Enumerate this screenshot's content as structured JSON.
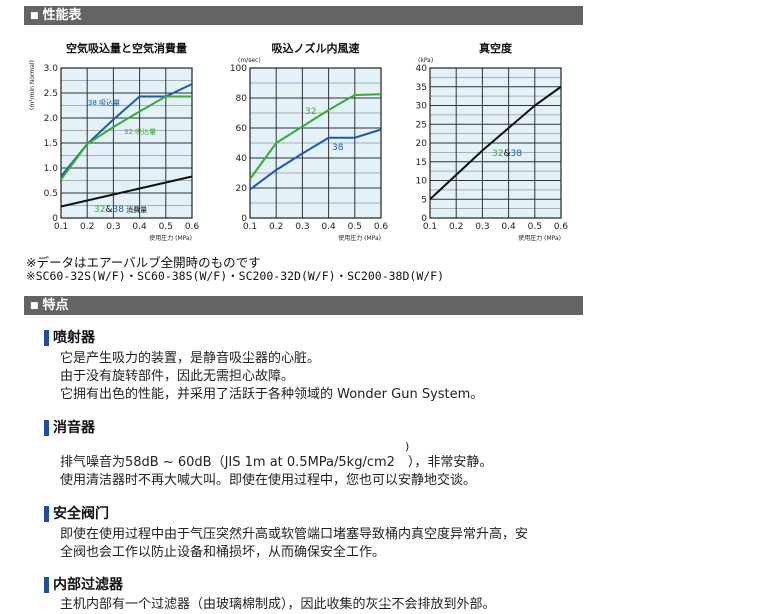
{
  "sections": {
    "performance": "性能表",
    "features": "特点"
  },
  "colors": {
    "blue": "#1d5aa8",
    "green": "#3aa935",
    "plot_bg": "#e3f2f8",
    "header_bg": "#646464"
  },
  "notes": [
    "※データはエアーバルブ全開時のものです",
    "※SC60-32S(W/F)・SC60-38S(W/F)・SC200-32D(W/F)・SC200-38D(W/F)"
  ],
  "features": [
    {
      "title": "喷射器",
      "lines": [
        "它是产生吸力的装置，是静音吸尘器的心脏。",
        "由于没有旋转部件，因此无需担心故障。",
        "它拥有出色的性能，并采用了活跃于各种领域的 Wonder Gun System。"
      ]
    },
    {
      "title": "消音器",
      "lines": [
        "排气噪音为58dB ~ 60dB（JIS 1m at 0.5MPa/5kg/cm2　），非常安静。",
        "使用清洁器时不再大喊大叫。即使在使用过程中，您也可以安静地交谈。"
      ],
      "superscript": ")"
    },
    {
      "title": "安全阀门",
      "lines": [
        "即使在使用过程中由于气压突然升高或软管端口堵塞导致桶内真空度异常升高，安",
        "全阀也会工作以防止设备和桶损坏，从而确保安全工作。"
      ]
    },
    {
      "title": "内部过滤器",
      "lines": [
        "主机内部有一个过滤器（由玻璃棉制成），因此收集的灰尘不会排放到外部。"
      ]
    }
  ],
  "chart_data": [
    {
      "type": "line",
      "title": "空気吸込量と空気消費量",
      "ylabel": "(m³/min Normal)",
      "xlabel": "使用圧力 (MPa)",
      "xlim": [
        0.1,
        0.6
      ],
      "ylim": [
        0,
        3.0
      ],
      "x": [
        0.1,
        0.2,
        0.3,
        0.4,
        0.5,
        0.6
      ],
      "xticks": [
        "0.1",
        "0.2",
        "0.3",
        "0.4",
        "0.5",
        "0.6"
      ],
      "yticks": [
        "0",
        "0.5",
        "1.0",
        "1.5",
        "2.0",
        "2.5",
        "3.0"
      ],
      "ytick_values": [
        0,
        0.5,
        1,
        1.5,
        2,
        2.5,
        3
      ],
      "grid": true,
      "series": [
        {
          "name": "38 吸込量",
          "color": "#1d5aa8",
          "values": [
            0.83,
            1.48,
            1.97,
            2.43,
            2.43,
            2.68
          ]
        },
        {
          "name": "32 吸込量",
          "color": "#3aa935",
          "values": [
            0.77,
            1.48,
            1.82,
            2.13,
            2.43,
            2.43
          ]
        },
        {
          "name": "32&38 消費量",
          "color": "#111111",
          "values": [
            0.23,
            0.35,
            0.47,
            0.59,
            0.71,
            0.83
          ]
        }
      ],
      "labels": [
        {
          "parts": [
            [
              "38 吸込量",
              "#1d5aa8"
            ]
          ]
        },
        {
          "parts": [
            [
              "32 吸込量",
              "#3aa935"
            ]
          ]
        },
        {
          "parts": [
            [
              "32",
              "#3aa935"
            ],
            [
              "&",
              "#111"
            ],
            [
              "38",
              "#1d5aa8"
            ],
            [
              " 消費量",
              "#111"
            ]
          ]
        }
      ]
    },
    {
      "type": "line",
      "title": "吸込ノズル内風速",
      "ylabel": "(m/sec)",
      "xlabel": "使用圧力 (MPa)",
      "xlim": [
        0.1,
        0.6
      ],
      "ylim": [
        0,
        100
      ],
      "x": [
        0.1,
        0.2,
        0.3,
        0.4,
        0.5,
        0.6
      ],
      "xticks": [
        "0.1",
        "0.2",
        "0.3",
        "0.4",
        "0.5",
        "0.6"
      ],
      "yticks": [
        "0",
        "20",
        "40",
        "60",
        "80",
        "100"
      ],
      "ytick_values": [
        0,
        20,
        40,
        60,
        80,
        100
      ],
      "grid": true,
      "series": [
        {
          "name": "32",
          "color": "#3aa935",
          "values": [
            26,
            50,
            61,
            72,
            82,
            82.5
          ]
        },
        {
          "name": "38",
          "color": "#1d5aa8",
          "values": [
            19,
            32,
            43,
            53.5,
            53.5,
            59
          ]
        }
      ],
      "labels": [
        {
          "parts": [
            [
              "32",
              "#3aa935"
            ]
          ]
        },
        {
          "parts": [
            [
              "38",
              "#1d5aa8"
            ]
          ]
        }
      ]
    },
    {
      "type": "line",
      "title": "真空度",
      "ylabel": "(kPa)",
      "xlabel": "使用圧力 (MPa)",
      "xlim": [
        0.1,
        0.6
      ],
      "ylim": [
        0,
        40
      ],
      "x": [
        0.1,
        0.2,
        0.3,
        0.4,
        0.5,
        0.6
      ],
      "xticks": [
        "0.1",
        "0.2",
        "0.3",
        "0.4",
        "0.5",
        "0.6"
      ],
      "yticks": [
        "0",
        "5",
        "10",
        "15",
        "20",
        "25",
        "30",
        "35",
        "40"
      ],
      "ytick_values": [
        0,
        5,
        10,
        15,
        20,
        25,
        30,
        35,
        40
      ],
      "grid": true,
      "series": [
        {
          "name": "32&38",
          "color": "#111111",
          "values": [
            5,
            11.5,
            18,
            24,
            30,
            35
          ]
        }
      ],
      "labels": [
        {
          "parts": [
            [
              "32",
              "#3aa935"
            ],
            [
              "&",
              "#111"
            ],
            [
              "38",
              "#1d5aa8"
            ]
          ]
        }
      ]
    }
  ]
}
